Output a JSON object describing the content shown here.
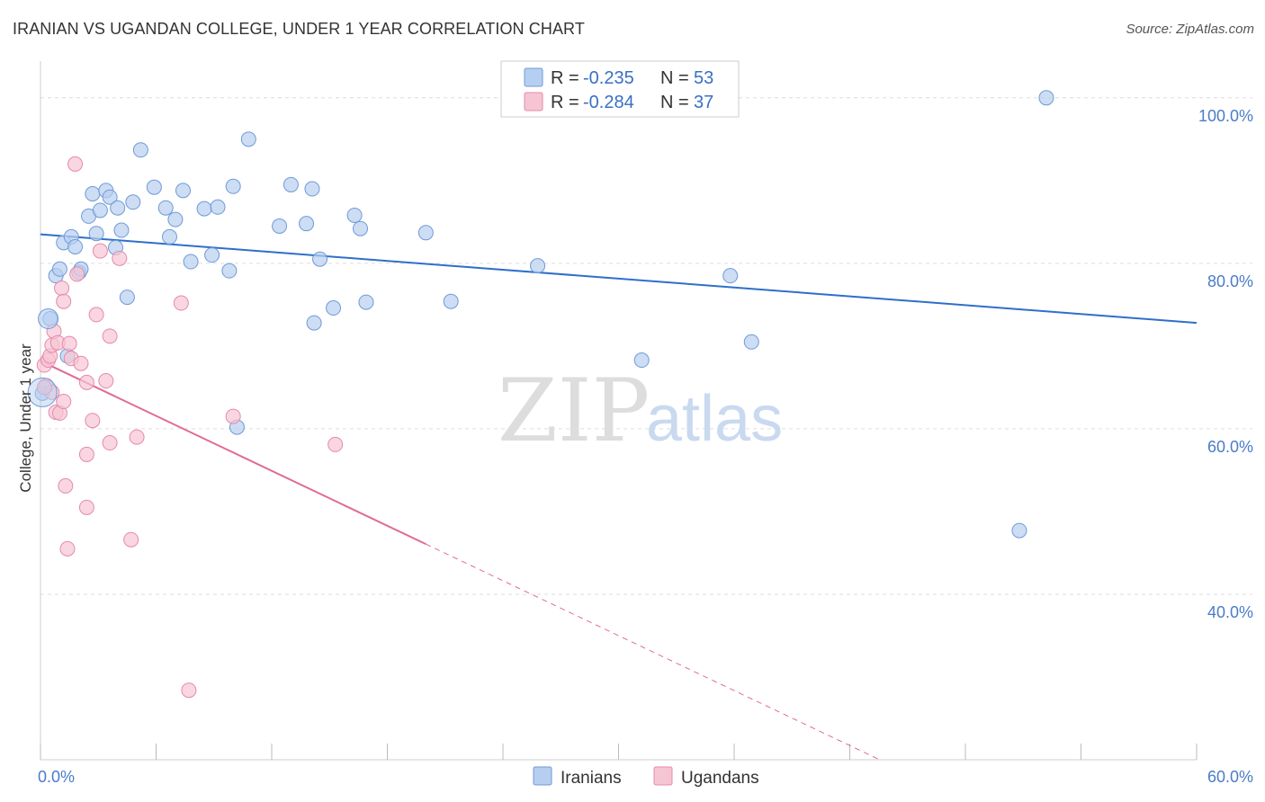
{
  "header": {
    "title": "IRANIAN VS UGANDAN COLLEGE, UNDER 1 YEAR CORRELATION CHART",
    "source": "Source: ZipAtlas.com"
  },
  "watermark": {
    "zip": "ZIP",
    "atlas": "atlas"
  },
  "legend": {
    "r_label": "R =",
    "n_label": "N =",
    "rows": [
      {
        "r": "-0.235",
        "n": "53"
      },
      {
        "r": "-0.284",
        "n": "37"
      }
    ]
  },
  "colors": {
    "iranians_fill": "#b6cff0",
    "iranians_stroke": "#6f9ad8",
    "iranians_line": "#2e6fcb",
    "ugandans_fill": "#f6c5d4",
    "ugandans_stroke": "#e58aa8",
    "ugandans_line": "#e06a94",
    "grid": "#dddddd",
    "tick_text": "#4a7cc9"
  },
  "chart_data": {
    "type": "scatter",
    "title": "IRANIAN VS UGANDAN COLLEGE, UNDER 1 YEAR CORRELATION CHART",
    "xlabel": "",
    "ylabel": "College, Under 1 year",
    "xlim": [
      0,
      60
    ],
    "ylim": [
      20,
      104
    ],
    "x_tick_labels": [
      {
        "value": 0,
        "label": "0.0%"
      },
      {
        "value": 60,
        "label": "60.0%"
      }
    ],
    "y_tick_labels": [
      {
        "value": 100,
        "label": "100.0%"
      },
      {
        "value": 80,
        "label": "80.0%"
      },
      {
        "value": 60,
        "label": "60.0%"
      },
      {
        "value": 40,
        "label": "40.0%"
      }
    ],
    "series": [
      {
        "name": "Iranians",
        "r": -0.235,
        "n": 53,
        "trend": {
          "x": [
            0,
            60
          ],
          "y": [
            83.5,
            72.8
          ],
          "solid_to": 60
        },
        "points": [
          [
            0.5,
            73.3
          ],
          [
            0.8,
            78.5
          ],
          [
            1.0,
            79.3
          ],
          [
            1.2,
            82.5
          ],
          [
            1.4,
            68.8
          ],
          [
            1.6,
            83.2
          ],
          [
            1.8,
            82.0
          ],
          [
            2.0,
            78.9
          ],
          [
            2.1,
            79.3
          ],
          [
            2.5,
            85.7
          ],
          [
            2.7,
            88.4
          ],
          [
            2.9,
            83.6
          ],
          [
            3.1,
            86.4
          ],
          [
            3.4,
            88.8
          ],
          [
            3.6,
            88.0
          ],
          [
            3.9,
            81.9
          ],
          [
            4.0,
            86.7
          ],
          [
            4.2,
            84.0
          ],
          [
            4.5,
            75.9
          ],
          [
            4.8,
            87.4
          ],
          [
            5.2,
            93.7
          ],
          [
            5.9,
            89.2
          ],
          [
            6.5,
            86.7
          ],
          [
            6.7,
            83.2
          ],
          [
            7.0,
            85.3
          ],
          [
            7.4,
            88.8
          ],
          [
            7.8,
            80.2
          ],
          [
            8.5,
            86.6
          ],
          [
            8.9,
            81.0
          ],
          [
            9.2,
            86.8
          ],
          [
            9.8,
            79.1
          ],
          [
            10.0,
            89.3
          ],
          [
            10.2,
            60.2
          ],
          [
            10.8,
            95.0
          ],
          [
            12.4,
            84.5
          ],
          [
            13.0,
            89.5
          ],
          [
            13.8,
            84.8
          ],
          [
            14.1,
            89.0
          ],
          [
            14.2,
            72.8
          ],
          [
            14.5,
            80.5
          ],
          [
            15.2,
            74.6
          ],
          [
            16.3,
            85.8
          ],
          [
            16.6,
            84.2
          ],
          [
            16.9,
            75.3
          ],
          [
            20.0,
            83.7
          ],
          [
            21.3,
            75.4
          ],
          [
            25.8,
            79.7
          ],
          [
            31.2,
            68.3
          ],
          [
            35.8,
            78.5
          ],
          [
            36.9,
            70.5
          ],
          [
            50.8,
            47.7
          ],
          [
            52.2,
            100.0
          ],
          [
            0.1,
            64.3
          ]
        ]
      },
      {
        "name": "Ugandans",
        "r": -0.284,
        "n": 37,
        "trend": {
          "x": [
            0,
            60
          ],
          "y": [
            68.2,
            1.8
          ],
          "solid_to": 20.0
        },
        "points": [
          [
            0.2,
            67.7
          ],
          [
            0.3,
            65.2
          ],
          [
            0.4,
            68.3
          ],
          [
            0.5,
            68.8
          ],
          [
            0.6,
            70.1
          ],
          [
            0.7,
            71.8
          ],
          [
            0.8,
            62.0
          ],
          [
            0.9,
            70.4
          ],
          [
            1.0,
            61.9
          ],
          [
            1.1,
            77.0
          ],
          [
            1.2,
            75.4
          ],
          [
            1.2,
            63.3
          ],
          [
            1.3,
            53.1
          ],
          [
            1.4,
            45.5
          ],
          [
            1.5,
            70.3
          ],
          [
            1.6,
            68.5
          ],
          [
            1.8,
            92.0
          ],
          [
            1.9,
            78.7
          ],
          [
            2.1,
            67.9
          ],
          [
            2.4,
            50.5
          ],
          [
            2.4,
            65.6
          ],
          [
            2.4,
            56.9
          ],
          [
            2.7,
            61.0
          ],
          [
            2.9,
            73.8
          ],
          [
            3.1,
            81.5
          ],
          [
            3.4,
            65.8
          ],
          [
            3.6,
            58.3
          ],
          [
            3.6,
            71.2
          ],
          [
            4.1,
            80.6
          ],
          [
            4.7,
            46.6
          ],
          [
            5.0,
            59.0
          ],
          [
            7.3,
            75.2
          ],
          [
            7.7,
            28.4
          ],
          [
            10.0,
            61.5
          ],
          [
            15.3,
            58.1
          ],
          [
            0.6,
            64.4
          ],
          [
            0.2,
            65.0
          ]
        ]
      }
    ]
  }
}
